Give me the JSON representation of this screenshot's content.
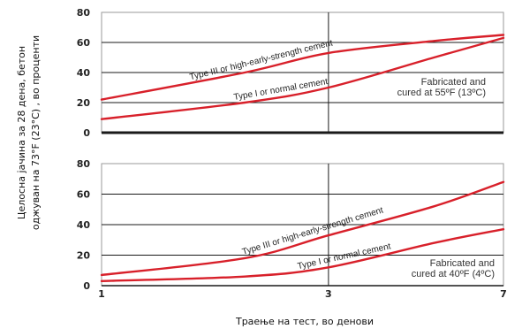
{
  "chart_data": [
    {
      "type": "line",
      "panel": "top",
      "x_ticks": [
        1,
        3,
        7
      ],
      "y_ticks": [
        0,
        20,
        40,
        60,
        80
      ],
      "ylim": [
        0,
        80
      ],
      "xlim": [
        1,
        7
      ],
      "x_scale": "log",
      "grid": true,
      "series": [
        {
          "name": "Type III or high-early-strength cement",
          "x": [
            1,
            2,
            3,
            5,
            7
          ],
          "y": [
            22,
            40,
            53,
            61,
            65
          ]
        },
        {
          "name": "Type I or normal cement",
          "x": [
            1,
            2,
            3,
            5,
            7
          ],
          "y": [
            9,
            20,
            30,
            50,
            63
          ]
        }
      ],
      "annotation": [
        "Fabricated and",
        "cured at 55ºF (13ºC)"
      ]
    },
    {
      "type": "line",
      "panel": "bottom",
      "x_ticks": [
        1,
        3,
        7
      ],
      "y_ticks": [
        0,
        20,
        40,
        60,
        80
      ],
      "ylim": [
        0,
        80
      ],
      "xlim": [
        1,
        7
      ],
      "x_scale": "log",
      "grid": true,
      "series": [
        {
          "name": "Type III or high-early-strength cement",
          "x": [
            1,
            2,
            3,
            5,
            7
          ],
          "y": [
            7,
            18,
            33,
            52,
            68
          ]
        },
        {
          "name": "Type I or normal cement",
          "x": [
            1,
            2,
            3,
            5,
            7
          ],
          "y": [
            3,
            6,
            12,
            28,
            37
          ]
        }
      ],
      "annotation": [
        "Fabricated and",
        "cured at 40ºF (4ºC)"
      ]
    }
  ],
  "axes": {
    "xlabel": "Траење на тест, во денови",
    "ylabel_line1": "Целосна јачина за 28 дена,  бетон",
    "ylabel_line2": "оджуван на 73°F (23°C) , во проценти"
  },
  "colors": {
    "curve": "#d8202a",
    "grid": "#1a1a1a",
    "frame": "#9a9a9a"
  }
}
